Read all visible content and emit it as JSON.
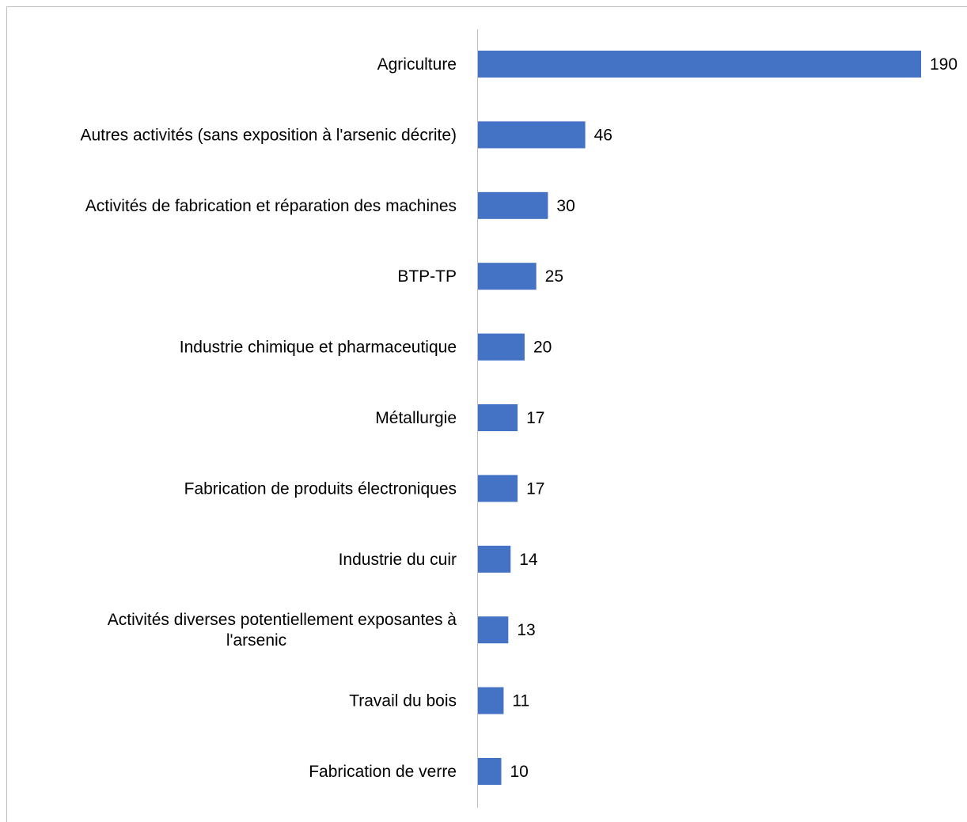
{
  "chart_data": {
    "type": "bar",
    "orientation": "horizontal",
    "title": "",
    "xlabel": "",
    "ylabel": "",
    "categories": [
      [
        "Agriculture"
      ],
      [
        "Autres activités (sans exposition à l'arsenic décrite)"
      ],
      [
        "Activités de fabrication et réparation des machines"
      ],
      [
        "BTP-TP"
      ],
      [
        "Industrie chimique et pharmaceutique"
      ],
      [
        "Métallurgie"
      ],
      [
        "Fabrication de produits électroniques"
      ],
      [
        "Industrie du cuir"
      ],
      [
        "Activités diverses potentiellement exposantes à",
        "l'arsenic"
      ],
      [
        "Travail du bois"
      ],
      [
        "Fabrication de verre"
      ]
    ],
    "values": [
      190,
      46,
      30,
      25,
      20,
      17,
      17,
      14,
      13,
      11,
      10
    ],
    "xlim": [
      0,
      190
    ],
    "grid": false,
    "legend": "none",
    "bar_color": "#4472c4",
    "axis_color": "#bfbfbf"
  }
}
